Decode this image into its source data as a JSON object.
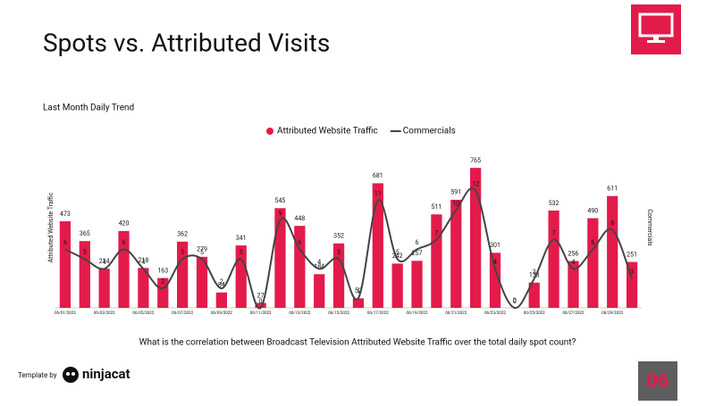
{
  "header": {
    "title": "Spots vs. Attributed Visits",
    "subtitle": "Last Month Daily Trend"
  },
  "chart_data": {
    "type": "combo",
    "categories": [
      "06/01/2022",
      null,
      "06/03/2022",
      null,
      "06/05/2022",
      null,
      "06/07/2022",
      null,
      "06/09/2022",
      null,
      "06/11/2022",
      null,
      "06/13/2022",
      null,
      "06/15/2022",
      null,
      "06/17/2022",
      null,
      "06/19/2022",
      null,
      "06/21/2022",
      null,
      "06/23/2022",
      null,
      "06/25/2022",
      null,
      "06/27/2022",
      null,
      "06/29/2022",
      null
    ],
    "series": [
      {
        "name": "Attributed Website Traffic",
        "type": "bar",
        "color": "#e31b4b",
        "values": [
          473,
          365,
          214,
          420,
          218,
          163,
          362,
          279,
          84,
          341,
          27,
          545,
          448,
          184,
          352,
          52,
          681,
          242,
          257,
          511,
          591,
          765,
          301,
          0,
          138,
          532,
          256,
          490,
          611,
          251
        ]
      },
      {
        "name": "Commercials",
        "type": "line",
        "color": "#444444",
        "axis": "y2",
        "values": [
          6,
          5,
          4,
          6,
          4,
          2,
          5,
          5,
          2,
          5,
          0,
          9,
          6,
          4,
          5,
          1,
          11,
          5,
          6,
          7,
          10,
          12,
          4,
          0,
          3,
          7,
          4,
          6,
          8,
          3
        ]
      }
    ],
    "ylabel": "Attributed Website Traffic",
    "y2label": "Commercials",
    "ylim": [
      0,
      800
    ],
    "y2lim": [
      0,
      15
    ],
    "legend": "top"
  },
  "footer": {
    "question": "What is the correlation between Broadcast Television Attributed Website Traffic over the total daily spot count?",
    "template_by": "Template by",
    "brand": "ninjacat",
    "page_number": "06"
  }
}
